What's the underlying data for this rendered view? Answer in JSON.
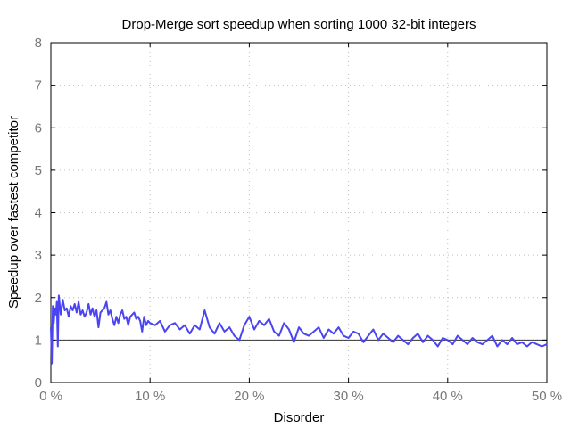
{
  "chart_data": {
    "type": "line",
    "title": "Drop-Merge sort speedup when sorting 1000 32-bit integers",
    "xlabel": "Disorder",
    "ylabel": "Speedup over fastest competitor",
    "xlim": [
      0,
      50
    ],
    "ylim": [
      0,
      8
    ],
    "x_ticks": [
      0,
      10,
      20,
      30,
      40,
      50
    ],
    "x_tick_labels": [
      "0 %",
      "10 %",
      "20 %",
      "30 %",
      "40 %",
      "50 %"
    ],
    "y_ticks": [
      0,
      1,
      2,
      3,
      4,
      5,
      6,
      7,
      8
    ],
    "y_tick_labels": [
      "0",
      "1",
      "2",
      "3",
      "4",
      "5",
      "6",
      "7",
      "8"
    ],
    "grid": true,
    "reference_line": 1,
    "series": [
      {
        "color": "#4a44f2",
        "x": [
          0.0,
          0.1,
          0.2,
          0.3,
          0.4,
          0.5,
          0.6,
          0.7,
          0.8,
          1.0,
          1.2,
          1.4,
          1.6,
          1.8,
          2.0,
          2.2,
          2.4,
          2.6,
          2.8,
          3.0,
          3.2,
          3.4,
          3.6,
          3.8,
          4.0,
          4.2,
          4.4,
          4.6,
          4.8,
          5.0,
          5.2,
          5.4,
          5.6,
          5.8,
          6.0,
          6.2,
          6.4,
          6.6,
          6.8,
          7.0,
          7.2,
          7.4,
          7.6,
          7.8,
          8.0,
          8.2,
          8.4,
          8.6,
          8.8,
          9.0,
          9.2,
          9.4,
          9.6,
          9.8,
          10.0,
          10.5,
          11.0,
          11.5,
          12.0,
          12.5,
          13.0,
          13.5,
          14.0,
          14.5,
          15.0,
          15.5,
          16.0,
          16.5,
          17.0,
          17.5,
          18.0,
          18.5,
          19.0,
          19.5,
          20.0,
          20.5,
          21.0,
          21.5,
          22.0,
          22.5,
          23.0,
          23.5,
          24.0,
          24.5,
          25.0,
          25.5,
          26.0,
          26.5,
          27.0,
          27.5,
          28.0,
          28.5,
          29.0,
          29.5,
          30.0,
          30.5,
          31.0,
          31.5,
          32.0,
          32.5,
          33.0,
          33.5,
          34.0,
          34.5,
          35.0,
          35.5,
          36.0,
          36.5,
          37.0,
          37.5,
          38.0,
          38.5,
          39.0,
          39.5,
          40.0,
          40.5,
          41.0,
          41.5,
          42.0,
          42.5,
          43.0,
          43.5,
          44.0,
          44.5,
          45.0,
          45.5,
          46.0,
          46.5,
          47.0,
          47.5,
          48.0,
          48.5,
          49.0,
          49.5,
          50.0
        ],
        "values": [
          1.3,
          0.45,
          1.8,
          1.4,
          1.75,
          1.6,
          1.9,
          0.85,
          2.05,
          1.6,
          1.95,
          1.7,
          1.75,
          1.55,
          1.8,
          1.7,
          1.85,
          1.65,
          1.9,
          1.6,
          1.7,
          1.55,
          1.65,
          1.85,
          1.6,
          1.75,
          1.55,
          1.7,
          1.3,
          1.65,
          1.7,
          1.75,
          1.9,
          1.6,
          1.7,
          1.5,
          1.35,
          1.55,
          1.4,
          1.6,
          1.7,
          1.5,
          1.55,
          1.35,
          1.55,
          1.6,
          1.65,
          1.5,
          1.55,
          1.45,
          1.2,
          1.55,
          1.35,
          1.45,
          1.4,
          1.35,
          1.45,
          1.2,
          1.35,
          1.4,
          1.25,
          1.35,
          1.15,
          1.35,
          1.25,
          1.7,
          1.3,
          1.15,
          1.4,
          1.2,
          1.3,
          1.1,
          1.0,
          1.35,
          1.55,
          1.25,
          1.45,
          1.35,
          1.5,
          1.2,
          1.1,
          1.4,
          1.25,
          0.95,
          1.3,
          1.15,
          1.1,
          1.2,
          1.3,
          1.05,
          1.25,
          1.15,
          1.3,
          1.1,
          1.05,
          1.2,
          1.15,
          0.95,
          1.1,
          1.25,
          1.0,
          1.15,
          1.05,
          0.95,
          1.1,
          1.0,
          0.9,
          1.05,
          1.15,
          0.95,
          1.1,
          1.0,
          0.85,
          1.05,
          1.0,
          0.9,
          1.1,
          1.0,
          0.9,
          1.05,
          0.95,
          0.9,
          1.0,
          1.1,
          0.85,
          1.0,
          0.9,
          1.05,
          0.9,
          0.95,
          0.85,
          0.95,
          0.9,
          0.85,
          0.9
        ]
      }
    ]
  }
}
